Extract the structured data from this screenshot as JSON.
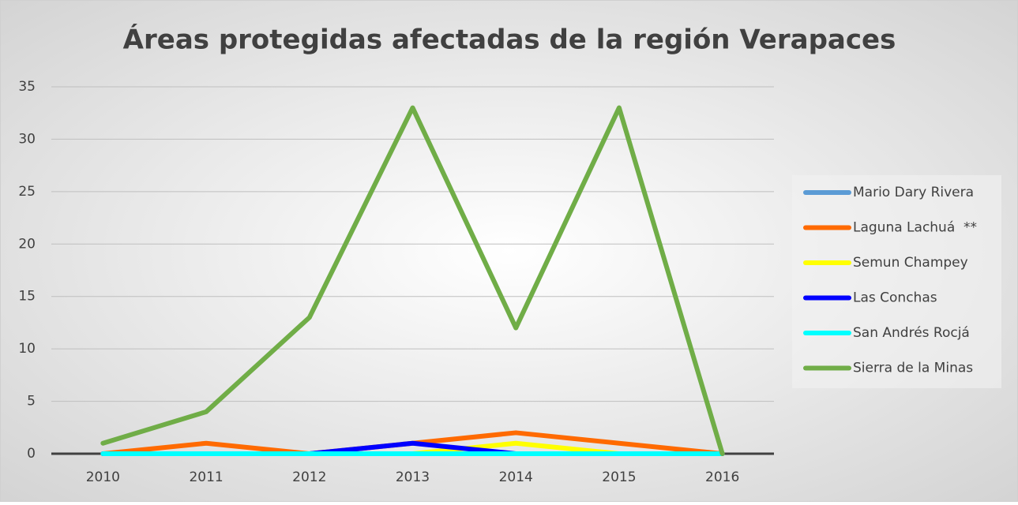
{
  "chart_data": {
    "type": "line",
    "title": "Áreas protegidas afectadas de la región Verapaces",
    "categories": [
      "2010",
      "2011",
      "2012",
      "2013",
      "2014",
      "2015",
      "2016"
    ],
    "series": [
      {
        "name": "Mario Dary Rivera",
        "color": "#5b9bd5",
        "values": [
          0,
          0,
          0,
          0,
          0,
          0,
          0
        ]
      },
      {
        "name": "Laguna Lachuá  **",
        "color": "#ff6a00",
        "values": [
          0,
          1,
          0,
          1,
          2,
          1,
          0
        ]
      },
      {
        "name": "Semun Champey",
        "color": "#ffff00",
        "values": [
          0,
          0,
          0,
          0,
          1,
          0,
          0
        ]
      },
      {
        "name": "Las Conchas",
        "color": "#0000ff",
        "values": [
          0,
          0,
          0,
          1,
          0,
          0,
          0
        ]
      },
      {
        "name": "San Andrés Rocjá",
        "color": "#00ffff",
        "values": [
          0,
          0,
          0,
          0,
          0,
          0,
          0
        ]
      },
      {
        "name": "Sierra de la Minas",
        "color": "#70ad47",
        "values": [
          1,
          4,
          13,
          33,
          12,
          33,
          0
        ]
      }
    ],
    "ylim": [
      0,
      35
    ],
    "yticks": [
      0,
      5,
      10,
      15,
      20,
      25,
      30,
      35
    ],
    "grid": true,
    "legend": "right"
  }
}
